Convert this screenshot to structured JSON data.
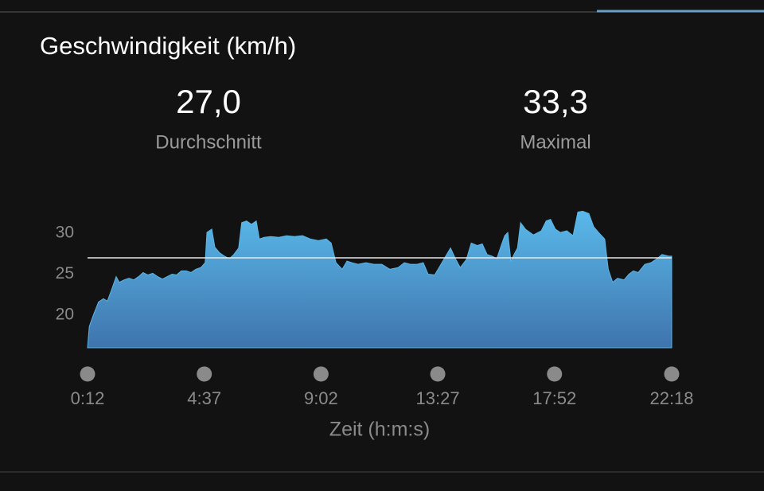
{
  "chart_data": {
    "type": "area",
    "title": "Geschwindigkeit (km/h)",
    "stats": [
      {
        "value": 27.0,
        "label": "27,0",
        "caption": "Durchschnitt"
      },
      {
        "value": 33.3,
        "label": "33,3",
        "caption": "Maximal"
      }
    ],
    "x_label": "Zeit (h:m:s)",
    "x": [
      12,
      16,
      26,
      37,
      48,
      57,
      66,
      77,
      84,
      95,
      106,
      117,
      128,
      138,
      149,
      160,
      171,
      182,
      193,
      204,
      214,
      225,
      236,
      247,
      258,
      269,
      279,
      283,
      294,
      301,
      312,
      323,
      334,
      344,
      355,
      362,
      373,
      384,
      395,
      402,
      413,
      428,
      446,
      464,
      482,
      500,
      518,
      536,
      554,
      565,
      576,
      590,
      601,
      612,
      626,
      644,
      662,
      680,
      698,
      717,
      731,
      745,
      760,
      774,
      785,
      800,
      811,
      825,
      836,
      847,
      858,
      872,
      883,
      897,
      908,
      919,
      930,
      941,
      951,
      959,
      966,
      973,
      980,
      988,
      995,
      1006,
      1024,
      1042,
      1053,
      1063,
      1074,
      1085,
      1100,
      1114,
      1125,
      1136,
      1150,
      1161,
      1172,
      1186,
      1194,
      1204,
      1215,
      1230,
      1241,
      1251,
      1262,
      1277,
      1291,
      1305,
      1316,
      1331,
      1338
    ],
    "series": [
      {
        "name": "Geschwindigkeit",
        "color": "#5ab6e6",
        "values": [
          16.0,
          18.6,
          20.1,
          21.6,
          22.0,
          21.7,
          23.0,
          24.7,
          24.0,
          24.3,
          24.5,
          24.3,
          24.7,
          25.2,
          24.9,
          25.1,
          24.7,
          24.4,
          24.7,
          25.0,
          24.9,
          25.4,
          25.4,
          25.2,
          25.6,
          25.8,
          26.4,
          30.1,
          30.5,
          28.3,
          27.6,
          27.2,
          26.9,
          27.4,
          28.2,
          31.3,
          31.5,
          31.1,
          31.5,
          29.3,
          29.5,
          29.6,
          29.5,
          29.7,
          29.6,
          29.7,
          29.3,
          29.1,
          29.3,
          28.8,
          26.4,
          25.6,
          26.6,
          26.4,
          26.2,
          26.4,
          26.2,
          26.2,
          25.6,
          25.8,
          26.4,
          26.2,
          26.2,
          26.4,
          25.0,
          24.9,
          25.9,
          27.2,
          28.2,
          26.9,
          25.8,
          26.8,
          28.8,
          28.5,
          28.7,
          27.4,
          27.2,
          26.9,
          28.5,
          29.7,
          30.1,
          26.6,
          27.4,
          28.2,
          31.3,
          30.5,
          29.8,
          30.3,
          31.5,
          31.7,
          30.5,
          30.1,
          30.3,
          29.7,
          32.6,
          32.7,
          32.4,
          30.8,
          30.1,
          29.3,
          25.6,
          24.0,
          24.5,
          24.3,
          25.0,
          25.4,
          25.2,
          26.2,
          26.4,
          26.9,
          27.4,
          27.2,
          27.2
        ]
      }
    ],
    "xlim": [
      12,
      1338
    ],
    "xticks": [
      {
        "value": 12,
        "label": "0:12"
      },
      {
        "value": 277,
        "label": "4:37"
      },
      {
        "value": 542,
        "label": "9:02"
      },
      {
        "value": 807,
        "label": "13:27"
      },
      {
        "value": 1072,
        "label": "17:52"
      },
      {
        "value": 1338,
        "label": "22:18"
      }
    ],
    "ylim": [
      16,
      34
    ],
    "yticks": [
      20,
      25,
      30
    ]
  }
}
